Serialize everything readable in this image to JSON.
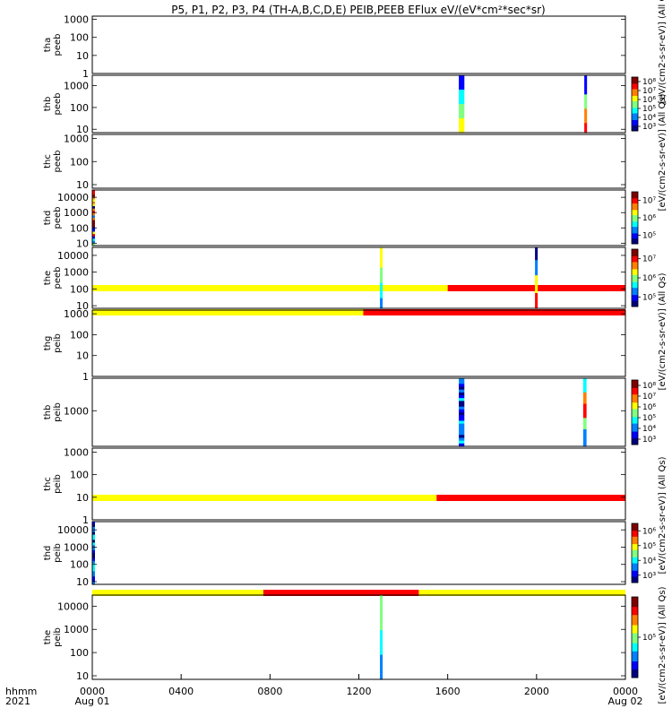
{
  "title": "P5, P1, P2, P3, P4 (TH-A,B,C,D,E) PEIB,PEEB EFlux eV/(eV*cm²*sec*sr)",
  "xaxis": {
    "corner_top": "hhmm",
    "corner_bottom": "2021",
    "ticks": [
      "0000",
      "0400",
      "0800",
      "1200",
      "1600",
      "2000",
      "0000"
    ],
    "dates": [
      "Aug 01",
      "Aug 02"
    ]
  },
  "colorbar_label": "[eV/(cm2-s-sr-eV)] (All Qs)",
  "chart_data": [
    {
      "type": "heatmap",
      "probe_label": "tha",
      "quantity": "peeb",
      "yticks": [
        "1000",
        "100",
        "10",
        "1"
      ],
      "ylim": [
        1,
        1500
      ],
      "log": true,
      "colorbar": null,
      "flags": [],
      "bursts": []
    },
    {
      "type": "heatmap",
      "probe_label": "thb",
      "quantity": "peeb",
      "yticks": [
        "1000",
        "100",
        "10"
      ],
      "ylim": [
        7,
        3000
      ],
      "log": true,
      "colorbar": {
        "ticks": [
          "10⁸",
          "10⁷",
          "10⁶",
          "10⁵",
          "10⁴",
          "10³"
        ]
      },
      "flags": [],
      "bursts": [
        {
          "t_start_hr": 16.5,
          "t_end_hr": 16.75,
          "pattern": "hot_bottom_blue_top"
        },
        {
          "t_start_hr": 22.15,
          "t_end_hr": 22.25,
          "pattern": "blue_top_red_bottom"
        }
      ]
    },
    {
      "type": "heatmap",
      "probe_label": "thc",
      "quantity": "peeb",
      "yticks": [
        "1000",
        "100",
        "10"
      ],
      "ylim": [
        7,
        1500
      ],
      "log": true,
      "colorbar": null,
      "flags": [],
      "bursts": []
    },
    {
      "type": "heatmap",
      "probe_label": "thd",
      "quantity": "peeb",
      "yticks": [
        "10000",
        "1000",
        "100",
        "10"
      ],
      "ylim": [
        7,
        30000
      ],
      "log": true,
      "colorbar": {
        "ticks": [
          "10⁷",
          "10⁶",
          "10⁵"
        ]
      },
      "flags": [],
      "bursts": [
        {
          "t_start_hr": 0.0,
          "t_end_hr": 0.1,
          "pattern": "edge_mixed"
        }
      ]
    },
    {
      "type": "heatmap",
      "probe_label": "the",
      "quantity": "peeb",
      "yticks": [
        "10000",
        "1000",
        "100",
        "10"
      ],
      "ylim": [
        7,
        30000
      ],
      "log": true,
      "colorbar": {
        "ticks": [
          "10⁷",
          "10⁶",
          "10⁵"
        ]
      },
      "flags": [
        {
          "color": "#ffff00",
          "t_start_hr": 0.0,
          "t_end_hr": 16.0
        },
        {
          "color": "#ff0000",
          "t_start_hr": 16.0,
          "t_end_hr": 24.0
        }
      ],
      "bursts": [
        {
          "t_start_hr": 12.95,
          "t_end_hr": 13.05,
          "pattern": "yellow_top_blue_bottom"
        },
        {
          "t_start_hr": 19.93,
          "t_end_hr": 20.0,
          "pattern": "thin_mixed"
        }
      ]
    },
    {
      "type": "heatmap",
      "probe_label": "thg",
      "quantity": "peib",
      "yticks": [
        "1000",
        "100",
        "10",
        "1"
      ],
      "ylim": [
        1,
        1500
      ],
      "log": true,
      "colorbar": null,
      "flags": [
        {
          "color": "#ffff00",
          "t_start_hr": 0.0,
          "t_end_hr": 12.2
        },
        {
          "color": "#ff0000",
          "t_start_hr": 12.2,
          "t_end_hr": 24.0
        }
      ],
      "bursts": []
    },
    {
      "type": "heatmap",
      "probe_label": "thb",
      "quantity": "peib",
      "yticks": [
        "1000"
      ],
      "ylim": [
        300,
        3000
      ],
      "log": true,
      "colorbar": {
        "ticks": [
          "10⁸",
          "10⁷",
          "10⁶",
          "10⁵",
          "10⁴",
          "10³"
        ]
      },
      "flags": [],
      "bursts": [
        {
          "t_start_hr": 16.5,
          "t_end_hr": 16.75,
          "pattern": "blue_speckle"
        },
        {
          "t_start_hr": 22.1,
          "t_end_hr": 22.25,
          "pattern": "cyan_red_blue"
        }
      ]
    },
    {
      "type": "heatmap",
      "probe_label": "thc",
      "quantity": "peib",
      "yticks": [
        "1000",
        "100",
        "10",
        "1"
      ],
      "ylim": [
        1,
        1500
      ],
      "log": true,
      "colorbar": null,
      "flags": [
        {
          "color": "#ffff00",
          "t_start_hr": 0.0,
          "t_end_hr": 15.5
        },
        {
          "color": "#ff0000",
          "t_start_hr": 15.5,
          "t_end_hr": 24.0
        }
      ],
      "bursts": []
    },
    {
      "type": "heatmap",
      "probe_label": "thd",
      "quantity": "peib",
      "yticks": [
        "10000",
        "1000",
        "100",
        "10"
      ],
      "ylim": [
        7,
        30000
      ],
      "log": true,
      "colorbar": {
        "ticks": [
          "10⁶",
          "10⁵",
          "10⁴",
          "10³"
        ]
      },
      "flags": [
        {
          "color": "#ffff00",
          "t_start_hr": 0.0,
          "t_end_hr": 7.7
        },
        {
          "color": "#ff0000",
          "t_start_hr": 7.7,
          "t_end_hr": 14.7
        },
        {
          "color": "#ffff00",
          "t_start_hr": 14.7,
          "t_end_hr": 24.0
        }
      ],
      "bursts": [
        {
          "t_start_hr": 0.0,
          "t_end_hr": 0.1,
          "pattern": "edge_blue"
        }
      ]
    },
    {
      "type": "heatmap",
      "probe_label": "the",
      "quantity": "peib",
      "yticks": [
        "10000",
        "1000",
        "100",
        "10"
      ],
      "ylim": [
        7,
        30000
      ],
      "log": true,
      "colorbar": {
        "ticks": [
          "10⁵"
        ]
      },
      "flags": [],
      "bursts": [
        {
          "t_start_hr": 12.95,
          "t_end_hr": 13.05,
          "pattern": "green_thin"
        }
      ]
    }
  ]
}
